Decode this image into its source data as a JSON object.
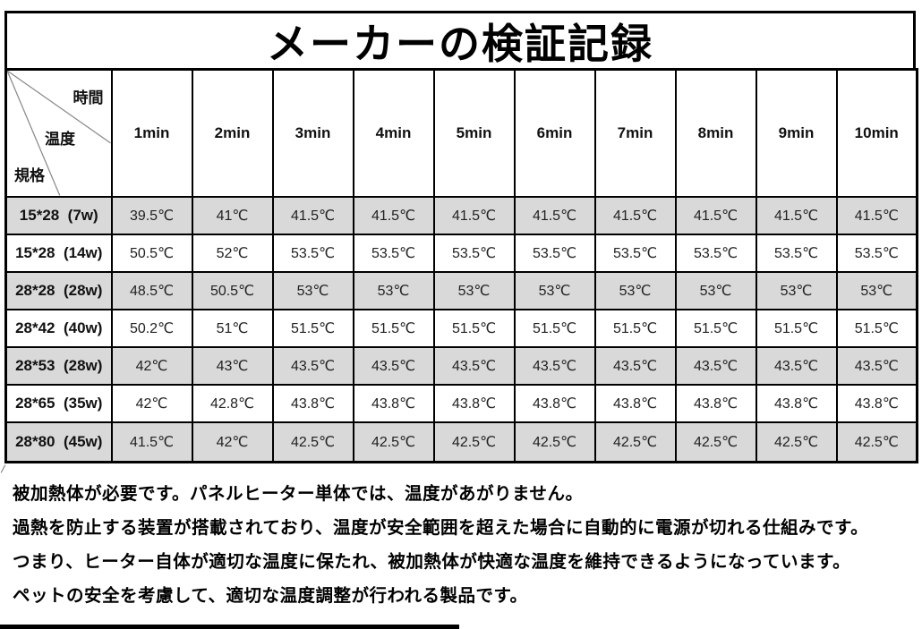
{
  "title": "メーカーの検証記録",
  "table": {
    "corner": {
      "top_right": "時間",
      "middle": "温度",
      "bottom_left": "規格"
    },
    "time_headers": [
      "1min",
      "2min",
      "3min",
      "4min",
      "5min",
      "6min",
      "7min",
      "8min",
      "9min",
      "10min"
    ],
    "rows": [
      {
        "spec": "15*28  (7w)",
        "values": [
          "39.5℃",
          "41℃",
          "41.5℃",
          "41.5℃",
          "41.5℃",
          "41.5℃",
          "41.5℃",
          "41.5℃",
          "41.5℃",
          "41.5℃"
        ]
      },
      {
        "spec": "15*28  (14w)",
        "values": [
          "50.5℃",
          "52℃",
          "53.5℃",
          "53.5℃",
          "53.5℃",
          "53.5℃",
          "53.5℃",
          "53.5℃",
          "53.5℃",
          "53.5℃"
        ]
      },
      {
        "spec": "28*28  (28w)",
        "values": [
          "48.5℃",
          "50.5℃",
          "53℃",
          "53℃",
          "53℃",
          "53℃",
          "53℃",
          "53℃",
          "53℃",
          "53℃"
        ]
      },
      {
        "spec": "28*42  (40w)",
        "values": [
          "50.2℃",
          "51℃",
          "51.5℃",
          "51.5℃",
          "51.5℃",
          "51.5℃",
          "51.5℃",
          "51.5℃",
          "51.5℃",
          "51.5℃"
        ]
      },
      {
        "spec": "28*53  (28w)",
        "values": [
          "42℃",
          "43℃",
          "43.5℃",
          "43.5℃",
          "43.5℃",
          "43.5℃",
          "43.5℃",
          "43.5℃",
          "43.5℃",
          "43.5℃"
        ]
      },
      {
        "spec": "28*65  (35w)",
        "values": [
          "42℃",
          "42.8℃",
          "43.8℃",
          "43.8℃",
          "43.8℃",
          "43.8℃",
          "43.8℃",
          "43.8℃",
          "43.8℃",
          "43.8℃"
        ]
      },
      {
        "spec": "28*80  (45w)",
        "values": [
          "41.5℃",
          "42℃",
          "42.5℃",
          "42.5℃",
          "42.5℃",
          "42.5℃",
          "42.5℃",
          "42.5℃",
          "42.5℃",
          "42.5℃"
        ]
      }
    ]
  },
  "notes": [
    "被加熱体が必要です。パネルヒーター単体では、温度があがりません。",
    "過熱を防止する装置が搭載されており、温度が安全範囲を超えた場合に自動的に電源が切れる仕組みです。",
    "つまり、ヒーター自体が適切な温度に保たれ、被加熱体が快適な温度を維持できるようになっています。",
    "ペットの安全を考慮して、適切な温度調整が行われる製品です。"
  ],
  "colors": {
    "stripe": "#d9d9d9",
    "border": "#000000",
    "diagonal": "#888888",
    "background": "#ffffff"
  }
}
